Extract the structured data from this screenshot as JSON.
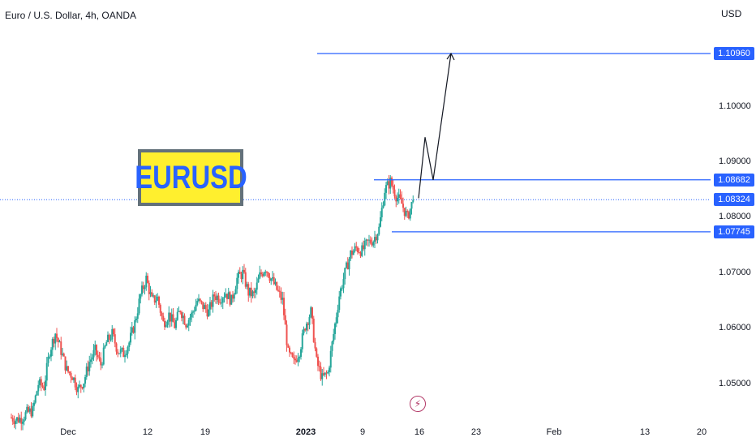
{
  "header": {
    "title": "Euro / U.S. Dollar, 4h, OANDA",
    "currency": "USD"
  },
  "symbol_label": "EURUSD",
  "colors": {
    "up": "#26a69a",
    "down": "#ef5350",
    "line": "#2962ff",
    "tag_bg": "#2962ff",
    "event": "#b33a68"
  },
  "chart_data": {
    "type": "candlestick",
    "title": "Euro / U.S. Dollar, 4h, OANDA",
    "y_unit": "USD",
    "ylim": [
      1.0435,
      1.1175
    ],
    "y_ticks": [
      "1.05000",
      "1.06000",
      "1.07000",
      "1.08000",
      "1.09000",
      "1.10000"
    ],
    "x_ticks": [
      {
        "label": "Dec",
        "bold": false
      },
      {
        "label": "12",
        "bold": false
      },
      {
        "label": "19",
        "bold": false
      },
      {
        "label": "2023",
        "bold": true
      },
      {
        "label": "9",
        "bold": false
      },
      {
        "label": "16",
        "bold": false
      },
      {
        "label": "23",
        "bold": false
      },
      {
        "label": "Feb",
        "bold": false
      },
      {
        "label": "13",
        "bold": false
      },
      {
        "label": "20",
        "bold": false
      }
    ],
    "levels": [
      {
        "label": "1.10960",
        "value": 1.1096
      },
      {
        "label": "1.08682",
        "value": 1.08682
      },
      {
        "label": "1.07745",
        "value": 1.07745
      }
    ],
    "last_price": {
      "label": "1.08324",
      "value": 1.08324
    },
    "projection_path": [
      [
        1.0835,
        1.0945
      ],
      [
        1.0945,
        1.0868
      ],
      [
        1.0868,
        1.1096
      ]
    ],
    "price_path": [
      1.044,
      1.0436,
      1.0438,
      1.0448,
      1.0452,
      1.05,
      1.0495,
      1.056,
      1.0592,
      1.056,
      1.0525,
      1.0515,
      1.049,
      1.0505,
      1.054,
      1.056,
      1.0535,
      1.0575,
      1.059,
      1.056,
      1.0555,
      1.0575,
      1.061,
      1.066,
      1.069,
      1.065,
      1.0655,
      1.061,
      1.0625,
      1.0605,
      1.0635,
      1.061,
      1.0625,
      1.065,
      1.064,
      1.063,
      1.066,
      1.0655,
      1.0665,
      1.065,
      1.069,
      1.07,
      1.0665,
      1.066,
      1.0695,
      1.071,
      1.069,
      1.067,
      1.065,
      1.0555,
      1.0538,
      1.056,
      1.0605,
      1.063,
      1.054,
      1.051,
      1.052,
      1.059,
      1.066,
      1.07,
      1.0735,
      1.0745,
      1.074,
      1.0755,
      1.076,
      1.078,
      1.085,
      1.0865,
      1.084,
      1.0825,
      1.08,
      1.0832
    ]
  }
}
